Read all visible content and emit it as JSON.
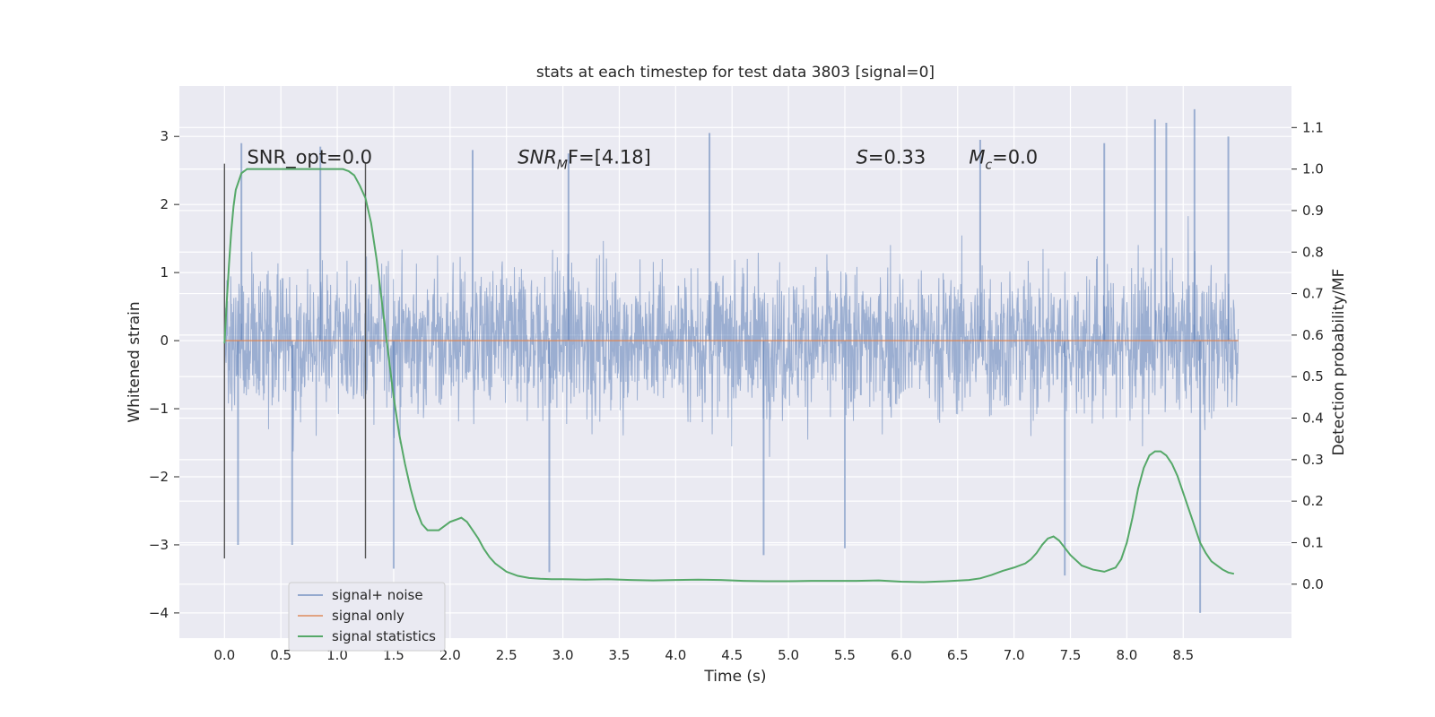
{
  "chart_data": {
    "type": "line",
    "title": "stats at each timestep for test data 3803 [signal=0]",
    "xlabel": "Time (s)",
    "ylabel": "Whitened strain",
    "y2label": "Detection probability/MF",
    "xlim": [
      -0.4,
      9.46
    ],
    "ylim": [
      -4.37,
      3.74
    ],
    "y2lim": [
      -0.13,
      1.2
    ],
    "x_ticks": [
      "0.0",
      "0.5",
      "1.0",
      "1.5",
      "2.0",
      "2.5",
      "3.0",
      "3.5",
      "4.0",
      "4.5",
      "5.0",
      "5.5",
      "6.0",
      "6.5",
      "7.0",
      "7.5",
      "8.0",
      "8.5"
    ],
    "y_ticks": [
      "3",
      "2",
      "1",
      "0",
      "−1",
      "−2",
      "−3",
      "−4"
    ],
    "y2_ticks": [
      "1.1",
      "1.0",
      "0.9",
      "0.8",
      "0.7",
      "0.6",
      "0.5",
      "0.4",
      "0.3",
      "0.2",
      "0.1",
      "0.0"
    ],
    "grid": true,
    "legend_position": "lower-left",
    "annotations": [
      {
        "text": "SNR_opt=0.0",
        "x": 0.2,
        "y": 2.6
      },
      {
        "text": "SNR_MF=[4.18]",
        "x": 2.6,
        "y": 2.6
      },
      {
        "text": "S=0.33",
        "x": 5.6,
        "y": 2.6
      },
      {
        "text": "M_c=0.0",
        "x": 6.6,
        "y": 2.6
      }
    ],
    "vlines": [
      {
        "x": 0.0,
        "ymin": -3.2,
        "ymax": 2.6
      },
      {
        "x": 1.25,
        "ymin": -3.2,
        "ymax": 2.6
      }
    ],
    "series": [
      {
        "name": "signal+ noise",
        "axis": "left",
        "color": "#4c72b0",
        "alpha": 0.5,
        "x_range": [
          0.0,
          8.99
        ],
        "envelope": {
          "typical_min": -2.0,
          "typical_max": 2.0,
          "extreme_min": -4.0,
          "extreme_max": 3.4
        },
        "spikes": [
          {
            "x": 0.12,
            "y": -3.0
          },
          {
            "x": 0.15,
            "y": 2.9
          },
          {
            "x": 0.6,
            "y": -3.0
          },
          {
            "x": 0.85,
            "y": 2.85
          },
          {
            "x": 1.5,
            "y": -3.35
          },
          {
            "x": 2.2,
            "y": 2.8
          },
          {
            "x": 2.88,
            "y": -3.4
          },
          {
            "x": 3.05,
            "y": 2.75
          },
          {
            "x": 4.3,
            "y": 3.05
          },
          {
            "x": 4.78,
            "y": -3.15
          },
          {
            "x": 5.5,
            "y": -3.05
          },
          {
            "x": 6.7,
            "y": 2.95
          },
          {
            "x": 7.45,
            "y": -3.45
          },
          {
            "x": 7.8,
            "y": 2.9
          },
          {
            "x": 8.25,
            "y": 3.25
          },
          {
            "x": 8.35,
            "y": 3.2
          },
          {
            "x": 8.6,
            "y": 3.4
          },
          {
            "x": 8.65,
            "y": -4.0
          },
          {
            "x": 8.9,
            "y": 3.0
          }
        ]
      },
      {
        "name": "signal only",
        "axis": "left",
        "color": "#dd8452",
        "x": [
          0.0,
          8.99
        ],
        "y": [
          0.0,
          0.0
        ]
      },
      {
        "name": "signal statistics",
        "axis": "right",
        "color": "#55a868",
        "x": [
          0.0,
          0.02,
          0.04,
          0.06,
          0.08,
          0.1,
          0.15,
          0.2,
          0.3,
          0.5,
          0.7,
          0.9,
          1.0,
          1.05,
          1.1,
          1.15,
          1.2,
          1.25,
          1.3,
          1.35,
          1.4,
          1.45,
          1.5,
          1.55,
          1.6,
          1.65,
          1.7,
          1.75,
          1.8,
          1.85,
          1.9,
          1.95,
          2.0,
          2.05,
          2.1,
          2.15,
          2.2,
          2.25,
          2.3,
          2.35,
          2.4,
          2.5,
          2.6,
          2.7,
          2.8,
          2.9,
          3.0,
          3.2,
          3.4,
          3.6,
          3.8,
          4.0,
          4.2,
          4.4,
          4.6,
          4.8,
          5.0,
          5.2,
          5.4,
          5.6,
          5.8,
          6.0,
          6.2,
          6.4,
          6.6,
          6.7,
          6.8,
          6.9,
          7.0,
          7.05,
          7.1,
          7.15,
          7.2,
          7.25,
          7.3,
          7.35,
          7.4,
          7.5,
          7.6,
          7.7,
          7.8,
          7.85,
          7.9,
          7.95,
          8.0,
          8.05,
          8.1,
          8.15,
          8.2,
          8.25,
          8.3,
          8.35,
          8.4,
          8.45,
          8.5,
          8.55,
          8.6,
          8.65,
          8.7,
          8.75,
          8.8,
          8.85,
          8.9,
          8.95
        ],
        "y": [
          0.58,
          0.68,
          0.77,
          0.85,
          0.91,
          0.95,
          0.99,
          1.0,
          1.0,
          1.0,
          1.0,
          1.0,
          1.0,
          1.0,
          0.995,
          0.985,
          0.96,
          0.93,
          0.87,
          0.78,
          0.67,
          0.56,
          0.45,
          0.36,
          0.29,
          0.23,
          0.18,
          0.145,
          0.13,
          0.13,
          0.13,
          0.14,
          0.15,
          0.155,
          0.16,
          0.15,
          0.13,
          0.11,
          0.085,
          0.065,
          0.05,
          0.03,
          0.02,
          0.015,
          0.013,
          0.012,
          0.012,
          0.011,
          0.012,
          0.01,
          0.009,
          0.01,
          0.011,
          0.01,
          0.008,
          0.007,
          0.007,
          0.008,
          0.008,
          0.008,
          0.009,
          0.006,
          0.005,
          0.007,
          0.01,
          0.014,
          0.022,
          0.032,
          0.04,
          0.045,
          0.05,
          0.06,
          0.075,
          0.095,
          0.11,
          0.115,
          0.105,
          0.07,
          0.045,
          0.035,
          0.03,
          0.035,
          0.04,
          0.06,
          0.1,
          0.16,
          0.23,
          0.28,
          0.31,
          0.32,
          0.32,
          0.31,
          0.29,
          0.26,
          0.22,
          0.18,
          0.14,
          0.1,
          0.075,
          0.055,
          0.045,
          0.035,
          0.028,
          0.025
        ]
      }
    ]
  },
  "legend": [
    {
      "label": "signal+ noise",
      "color": "#4c72b0"
    },
    {
      "label": "signal only",
      "color": "#dd8452"
    },
    {
      "label": "signal statistics",
      "color": "#55a868"
    }
  ]
}
